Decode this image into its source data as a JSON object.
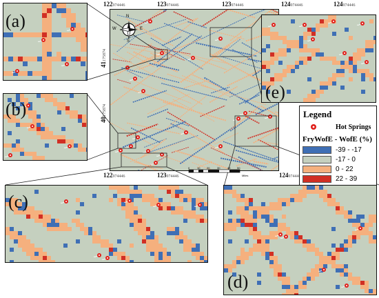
{
  "panels": {
    "a": "(a)",
    "b": "(b)",
    "c": "(c)",
    "d": "(d)",
    "e": "(e)"
  },
  "top_ticks": [
    {
      "deg": "122",
      "frac": "974446"
    },
    {
      "deg": "123",
      "frac": "974446"
    },
    {
      "deg": "123",
      "frac": "974446"
    },
    {
      "deg": "124",
      "frac": "974446"
    },
    {
      "deg": "124",
      "frac": "974446"
    }
  ],
  "bottom_ticks": [
    {
      "deg": "122",
      "frac": "974446"
    },
    {
      "deg": "123",
      "frac": "974446"
    },
    {
      "deg": "124",
      "frac": "974446"
    }
  ],
  "left_ticks": [
    {
      "deg": "41",
      "frac": "175874"
    },
    {
      "deg": "40",
      "frac": "175874"
    }
  ],
  "compass": {
    "n": "N",
    "s": "S",
    "e": "E",
    "w": "W"
  },
  "scale": {
    "labels": [
      "0",
      "10",
      "20",
      "30",
      "40",
      "50"
    ],
    "unit": "Miles"
  },
  "legend": {
    "title": "Legend",
    "hot_springs": "Hot Springs",
    "subtitle": "FryWofE - WofE (%)",
    "classes": [
      {
        "label": "-39 - -17",
        "color": "#3f6fb5"
      },
      {
        "label": "-17 - 0",
        "color": "#c5d0bf"
      },
      {
        "label": "0 - 22",
        "color": "#f5b07e"
      },
      {
        "label": "22 - 39",
        "color": "#d12f24"
      }
    ]
  },
  "colors": {
    "blue": "#3f6fb5",
    "grey": "#c5d0bf",
    "orange": "#f5b07e",
    "red": "#d12f24",
    "spring": "#e0201b"
  }
}
